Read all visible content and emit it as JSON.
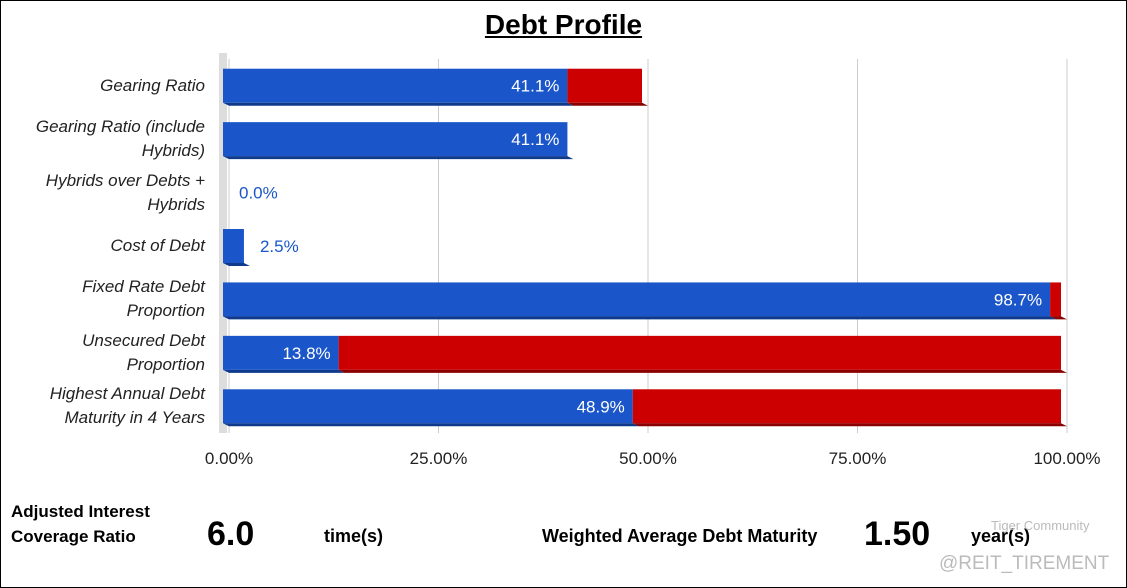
{
  "chart_data": {
    "type": "bar",
    "orientation": "horizontal",
    "stacked": true,
    "title": "Debt Profile",
    "categories": [
      "Gearing Ratio",
      "Gearing Ratio (include Hybrids)",
      "Hybrids over Debts + Hybrids",
      "Cost of Debt",
      "Fixed Rate Debt Proportion",
      "Unsecured Debt Proportion",
      "Highest Annual Debt Maturity in 4 Years"
    ],
    "series": [
      {
        "color": "#1a56c9",
        "values": [
          41.1,
          41.1,
          0.0,
          2.5,
          98.7,
          13.8,
          48.9
        ],
        "value_labels": [
          "41.1%",
          "41.1%",
          "0.0%",
          "2.5%",
          "98.7%",
          "13.8%",
          "48.9%"
        ]
      },
      {
        "color": "#cc0000",
        "values": [
          8.9,
          0,
          0,
          0,
          1.3,
          86.2,
          51.1
        ]
      }
    ],
    "xlim": [
      0,
      100
    ],
    "xticks": [
      {
        "value": 0,
        "label": "0.00%"
      },
      {
        "value": 25,
        "label": "25.00%"
      },
      {
        "value": 50,
        "label": "50.00%"
      },
      {
        "value": 75,
        "label": "75.00%"
      },
      {
        "value": 100,
        "label": "100.00%"
      }
    ],
    "grid": true
  },
  "stats": {
    "icr_label": "Adjusted Interest Coverage Ratio",
    "icr_value": "6.0",
    "icr_unit": "time(s)",
    "wadm_label": "Weighted Average Debt Maturity",
    "wadm_value": "1.50",
    "wadm_unit": "year(s)"
  },
  "watermark": {
    "brand": "Tiger Community",
    "handle": "@REIT_TIREMENT"
  }
}
